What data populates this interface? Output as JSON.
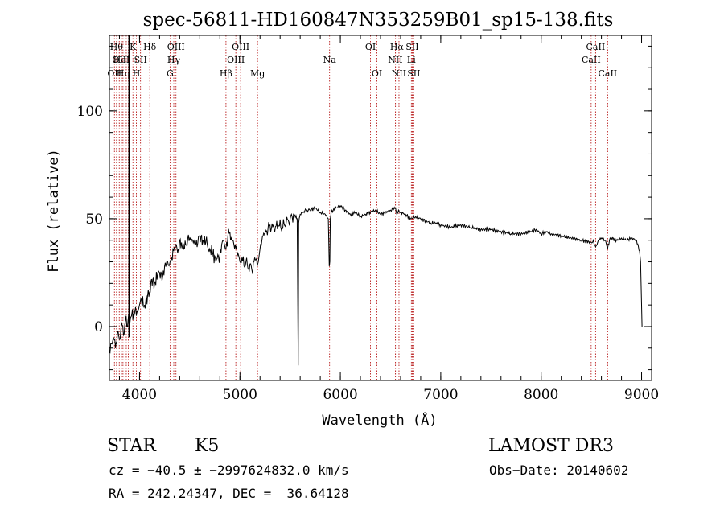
{
  "chart_data": {
    "type": "line",
    "title": "spec-56811-HD160847N353259B01_sp15-138.fits",
    "xlabel": "Wavelength (Å)",
    "ylabel": "Flux (relative)",
    "xlim": [
      3700,
      9100
    ],
    "ylim": [
      -25,
      135
    ],
    "x_ticks": [
      4000,
      5000,
      6000,
      7000,
      8000,
      9000
    ],
    "y_ticks": [
      0,
      50,
      100
    ],
    "grid": false,
    "series": [
      {
        "color": "#000000",
        "x": [
          3700,
          3720,
          3740,
          3760,
          3780,
          3800,
          3820,
          3840,
          3860,
          3880,
          3890,
          3900,
          3905,
          3910,
          3920,
          3930,
          3933,
          3936,
          3940,
          3950,
          3960,
          3968,
          3975,
          3990,
          4000,
          4020,
          4050,
          4080,
          4100,
          4120,
          4150,
          4180,
          4200,
          4230,
          4250,
          4280,
          4300,
          4320,
          4340,
          4360,
          4380,
          4400,
          4430,
          4460,
          4500,
          4530,
          4560,
          4600,
          4630,
          4660,
          4700,
          4730,
          4760,
          4800,
          4830,
          4861,
          4880,
          4900,
          4920,
          4940,
          4960,
          4980,
          5000,
          5020,
          5040,
          5060,
          5080,
          5100,
          5120,
          5140,
          5160,
          5172,
          5183,
          5200,
          5230,
          5260,
          5300,
          5340,
          5380,
          5420,
          5460,
          5500,
          5540,
          5570,
          5580,
          5585,
          5590,
          5600,
          5620,
          5660,
          5700,
          5750,
          5800,
          5850,
          5880,
          5890,
          5895,
          5900,
          5910,
          5930,
          5960,
          6000,
          6050,
          6100,
          6150,
          6200,
          6250,
          6300,
          6350,
          6400,
          6450,
          6500,
          6550,
          6563,
          6580,
          6600,
          6650,
          6700,
          6750,
          6800,
          6850,
          6900,
          6950,
          7000,
          7100,
          7200,
          7300,
          7400,
          7500,
          7600,
          7700,
          7800,
          7900,
          7950,
          8000,
          8050,
          8100,
          8200,
          8300,
          8400,
          8498,
          8520,
          8542,
          8570,
          8600,
          8640,
          8662,
          8680,
          8700,
          8750,
          8800,
          8850,
          8900,
          8950,
          8980,
          8990,
          9000,
          9005
        ],
        "y": [
          -12,
          -8,
          -5,
          -10,
          -3,
          -6,
          2,
          -4,
          3,
          0,
          5,
          4,
          2,
          4,
          5,
          8,
          3,
          6,
          4,
          6,
          9,
          5,
          7,
          8,
          10,
          12,
          10,
          14,
          16,
          22,
          20,
          24,
          25,
          23,
          28,
          30,
          29,
          32,
          35,
          38,
          34,
          40,
          36,
          38,
          41,
          40,
          38,
          42,
          40,
          39,
          36,
          34,
          30,
          33,
          40,
          36,
          42,
          44,
          40,
          38,
          36,
          34,
          30,
          32,
          28,
          30,
          27,
          29,
          26,
          30,
          31,
          28,
          30,
          36,
          42,
          44,
          47,
          45,
          47,
          46,
          48,
          50,
          52,
          50,
          -18,
          48,
          50,
          52,
          53,
          54,
          54,
          55,
          53,
          52,
          50,
          28,
          30,
          50,
          53,
          54,
          55,
          56,
          54,
          52,
          53,
          51,
          52,
          53,
          54,
          52,
          53,
          54,
          55,
          52,
          54,
          53,
          52,
          50,
          51,
          50,
          49,
          48,
          48,
          47,
          46,
          47,
          46,
          45,
          45,
          44,
          43,
          43,
          44,
          45,
          43,
          44,
          43,
          42,
          41,
          40,
          39,
          40,
          37,
          40,
          41,
          40,
          36,
          40,
          41,
          40,
          41,
          40,
          41,
          40,
          35,
          30,
          10,
          0
        ]
      }
    ],
    "lines": [
      {
        "x": 3750,
        "label": "OII",
        "row": 3,
        "color": "#b00000"
      },
      {
        "x": 3771,
        "label": "Hθ",
        "row": 1,
        "color": "#b00000"
      },
      {
        "x": 3798,
        "label": "OII",
        "row": 2,
        "color": "#b00000"
      },
      {
        "x": 3820,
        "label": "HeI",
        "row": 2,
        "color": "#b00000"
      },
      {
        "x": 3835,
        "label": "Hη",
        "row": 3,
        "color": "#b00000"
      },
      {
        "x": 3868,
        "label": "",
        "row": 3,
        "color": "#b00000"
      },
      {
        "x": 3889,
        "label": "",
        "row": 3,
        "color": "#b00000"
      },
      {
        "x": 3934,
        "label": "K",
        "row": 1,
        "color": "#b00000"
      },
      {
        "x": 3969,
        "label": "H",
        "row": 3,
        "color": "#b00000"
      },
      {
        "x": 4010,
        "label": "SII",
        "row": 2,
        "color": "#b00000"
      },
      {
        "x": 4102,
        "label": "Hδ",
        "row": 1,
        "color": "#b00000"
      },
      {
        "x": 4304,
        "label": "G",
        "row": 3,
        "color": "#b00000"
      },
      {
        "x": 4341,
        "label": "Hγ",
        "row": 2,
        "color": "#b00000"
      },
      {
        "x": 4363,
        "label": "OIII",
        "row": 1,
        "color": "#b00000"
      },
      {
        "x": 4861,
        "label": "Hβ",
        "row": 3,
        "color": "#b00000"
      },
      {
        "x": 4959,
        "label": "OIII",
        "row": 2,
        "color": "#b00000"
      },
      {
        "x": 5007,
        "label": "OIII",
        "row": 1,
        "color": "#b00000"
      },
      {
        "x": 5175,
        "label": "Mg",
        "row": 3,
        "color": "#b00000"
      },
      {
        "x": 5893,
        "label": "Na",
        "row": 2,
        "color": "#b00000"
      },
      {
        "x": 6300,
        "label": "OI",
        "row": 1,
        "color": "#b00000"
      },
      {
        "x": 6364,
        "label": "OI",
        "row": 3,
        "color": "#b00000"
      },
      {
        "x": 6548,
        "label": "NII",
        "row": 2,
        "color": "#b00000"
      },
      {
        "x": 6563,
        "label": "Hα",
        "row": 1,
        "color": "#b00000"
      },
      {
        "x": 6584,
        "label": "NII",
        "row": 3,
        "color": "#b00000"
      },
      {
        "x": 6707,
        "label": "Li",
        "row": 2,
        "color": "#b00000"
      },
      {
        "x": 6716,
        "label": "SII",
        "row": 1,
        "color": "#b00000"
      },
      {
        "x": 6731,
        "label": "SII",
        "row": 3,
        "color": "#b00000"
      },
      {
        "x": 8498,
        "label": "CaII",
        "row": 2,
        "color": "#b00000"
      },
      {
        "x": 8542,
        "label": "CaII",
        "row": 1,
        "color": "#b00000"
      },
      {
        "x": 8662,
        "label": "CaII",
        "row": 3,
        "color": "#b00000"
      }
    ]
  },
  "info": {
    "object_class": "STAR",
    "subclass": "K5",
    "survey": "LAMOST DR3",
    "cz": "cz = −40.5 ± −2997624832.0 km/s",
    "obs_date": "Obs−Date: 20140602",
    "radec": "RA = 242.24347, DEC =  36.64128"
  }
}
